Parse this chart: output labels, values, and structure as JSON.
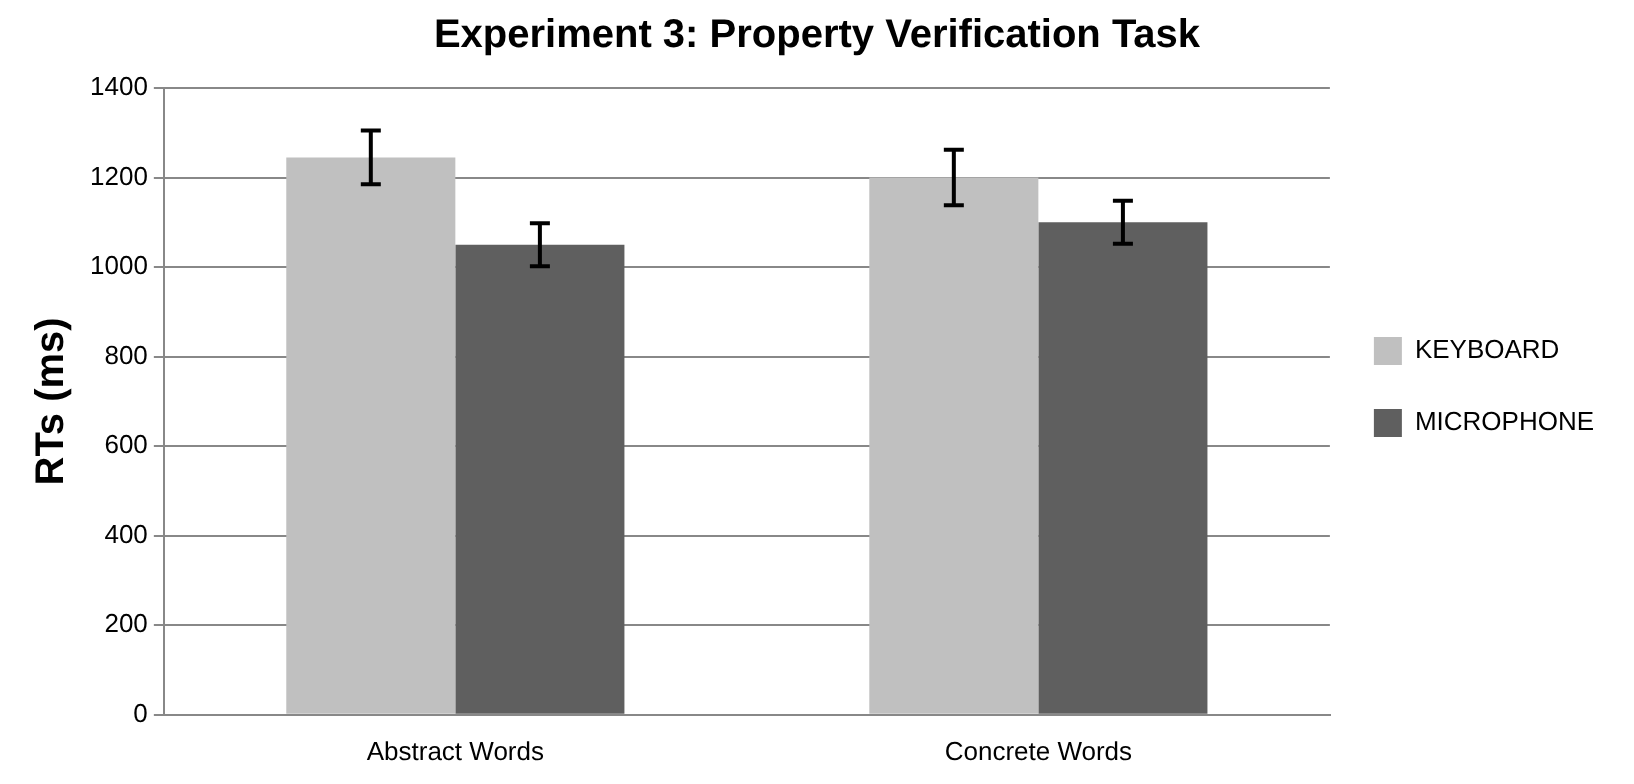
{
  "chart_data": {
    "type": "bar",
    "title": "Experiment 3: Property Verification Task",
    "ylabel": "RTs (ms)",
    "categories": [
      "Abstract Words",
      "Concrete Words"
    ],
    "series": [
      {
        "name": "KEYBOARD",
        "color": "#c0c0c0",
        "values": [
          1245,
          1200
        ],
        "errors": [
          60,
          62
        ]
      },
      {
        "name": "MICROPHONE",
        "color": "#5f5f5f",
        "values": [
          1050,
          1100
        ],
        "errors": [
          48,
          48
        ]
      }
    ],
    "ylim": [
      0,
      1400
    ],
    "yticks": [
      0,
      200,
      400,
      600,
      800,
      1000,
      1200,
      1400
    ],
    "grid": "y",
    "legend": "right"
  }
}
